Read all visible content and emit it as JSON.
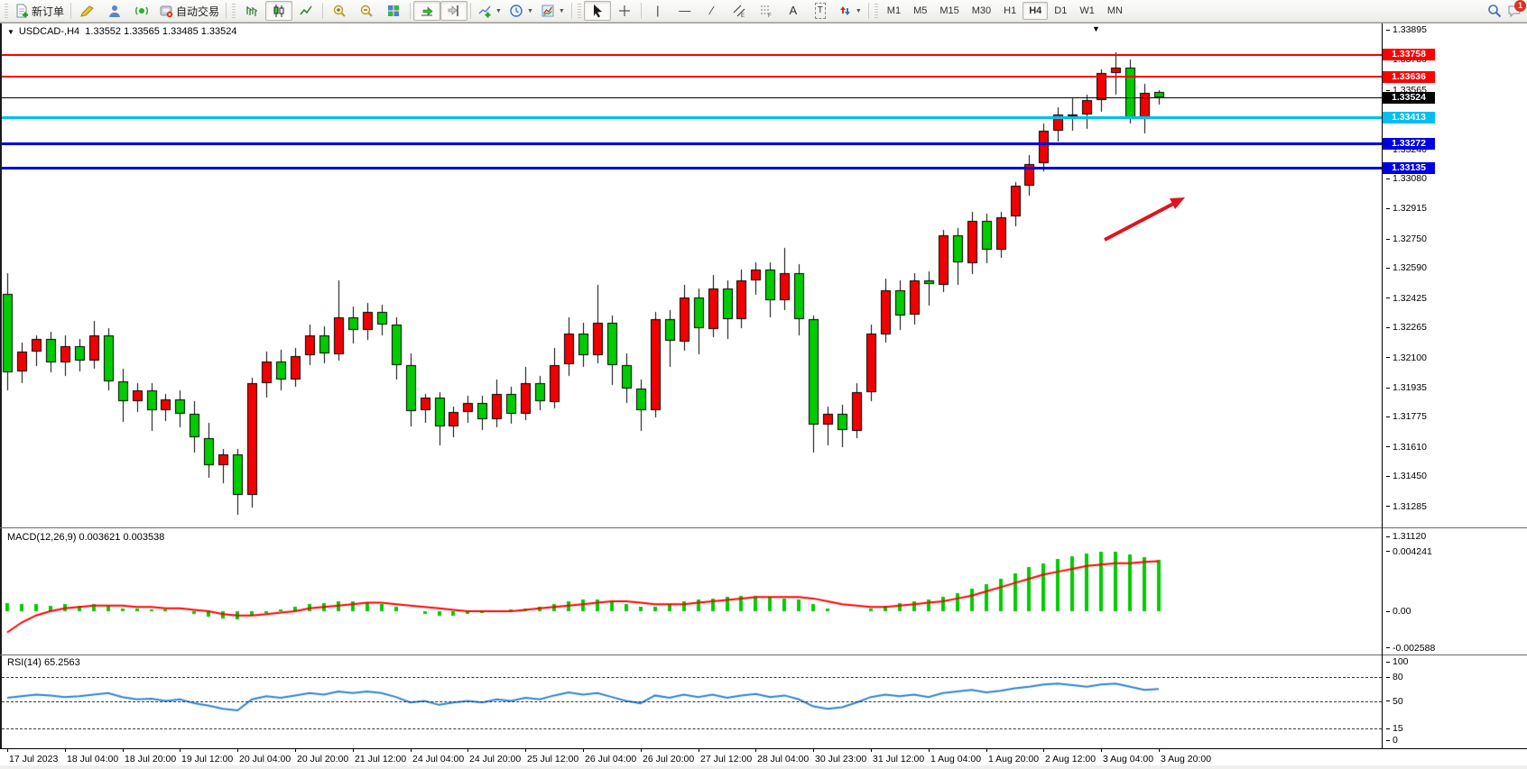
{
  "toolbar": {
    "new_order_label": "新订单",
    "autotrading_label": "自动交易",
    "timeframes": [
      "M1",
      "M5",
      "M15",
      "M30",
      "H1",
      "H4",
      "D1",
      "W1",
      "MN"
    ],
    "active_timeframe": "H4",
    "notification_badge": "1",
    "icons": [
      "new-order-icon",
      "metaeditor-icon",
      "strategy-tester-icon",
      "signals-icon",
      "autotrading-icon",
      "bar-chart-icon",
      "candlestick-chart-icon",
      "line-chart-icon",
      "zoom-in-icon",
      "zoom-out-icon",
      "tile-windows-icon",
      "auto-scroll-icon",
      "chart-shift-icon",
      "indicators-icon",
      "periods-icon",
      "templates-icon",
      "cursor-icon",
      "crosshair-icon",
      "vertical-line-icon",
      "horizontal-line-icon",
      "trendline-icon",
      "channel-icon",
      "fibonacci-icon",
      "text-icon",
      "text-label-icon",
      "arrows-icon",
      "search-icon",
      "chat-icon"
    ]
  },
  "window": {
    "collapse_marker": "▼",
    "title": "USDCAD-,H4",
    "quote": "1.33552 1.33565 1.33485 1.33524",
    "shift_marker": "▼"
  },
  "chart_data": {
    "type": "candlestick",
    "symbol": "USDCAD-",
    "period": "H4",
    "bars_per_label": 4,
    "x_labels": [
      "17 Jul 2023",
      "18 Jul 04:00",
      "18 Jul 20:00",
      "19 Jul 12:00",
      "20 Jul 04:00",
      "20 Jul 20:00",
      "21 Jul 12:00",
      "24 Jul 04:00",
      "24 Jul 20:00",
      "25 Jul 12:00",
      "26 Jul 04:00",
      "26 Jul 20:00",
      "27 Jul 12:00",
      "28 Jul 04:00",
      "30 Jul 23:00",
      "31 Jul 12:00",
      "1 Aug 04:00",
      "1 Aug 20:00",
      "2 Aug 12:00",
      "3 Aug 04:00",
      "3 Aug 20:00"
    ],
    "y_axis": {
      "max": 1.33895,
      "min": 1.3112,
      "ticks": [
        "1.33895",
        "1.33730",
        "1.33565",
        "1.33400",
        "1.33240",
        "1.33080",
        "1.32915",
        "1.32750",
        "1.32590",
        "1.32425",
        "1.32265",
        "1.32100",
        "1.31935",
        "1.31775",
        "1.31610",
        "1.31450",
        "1.31285",
        "1.31120"
      ]
    },
    "colors": {
      "bull_body": "#f20000",
      "bear_body": "#00cc00",
      "wick": "#000000",
      "macd_hist": "#00cc00",
      "macd_signal": "#ff0000",
      "rsi_line": "#2d83d5",
      "arrow": "#e01420"
    },
    "current_bar": {
      "open": "1.33552",
      "high": "1.33565",
      "low": "1.33485",
      "close": "1.33524"
    },
    "hlines": [
      {
        "label": "1.33758",
        "price": 1.33758,
        "color": "#ff0000",
        "thickness": 2
      },
      {
        "label": "1.33636",
        "price": 1.33636,
        "color": "#ff0000",
        "thickness": 2
      },
      {
        "label": "1.33524",
        "price": 1.33524,
        "color": "#000000",
        "thickness": 1
      },
      {
        "label": "1.33413",
        "price": 1.33413,
        "color": "#00bfef",
        "thickness": 3
      },
      {
        "label": "1.33272",
        "price": 1.33272,
        "color": "#0000e0",
        "thickness": 3
      },
      {
        "label": "1.33135",
        "price": 1.33135,
        "color": "#0000e0",
        "thickness": 3
      }
    ],
    "ohlc": [
      [
        1.3245,
        1.3256,
        1.3192,
        1.3202
      ],
      [
        1.3202,
        1.3218,
        1.3196,
        1.3213
      ],
      [
        1.3213,
        1.3222,
        1.3205,
        1.322
      ],
      [
        1.322,
        1.3224,
        1.3202,
        1.3207
      ],
      [
        1.3207,
        1.3222,
        1.32,
        1.3216
      ],
      [
        1.3216,
        1.322,
        1.3202,
        1.3208
      ],
      [
        1.3208,
        1.323,
        1.3204,
        1.3222
      ],
      [
        1.3222,
        1.3226,
        1.3192,
        1.3197
      ],
      [
        1.3197,
        1.3204,
        1.3175,
        1.3186
      ],
      [
        1.3186,
        1.3196,
        1.318,
        1.3192
      ],
      [
        1.3192,
        1.3196,
        1.317,
        1.3181
      ],
      [
        1.3181,
        1.319,
        1.3175,
        1.3187
      ],
      [
        1.3187,
        1.3192,
        1.3172,
        1.3179
      ],
      [
        1.3179,
        1.3186,
        1.3158,
        1.3166
      ],
      [
        1.3166,
        1.3174,
        1.3144,
        1.3151
      ],
      [
        1.3151,
        1.316,
        1.3141,
        1.3157
      ],
      [
        1.3157,
        1.316,
        1.3124,
        1.3135
      ],
      [
        1.3135,
        1.3199,
        1.3128,
        1.3196
      ],
      [
        1.3196,
        1.3213,
        1.3188,
        1.3208
      ],
      [
        1.3208,
        1.3214,
        1.3192,
        1.3198
      ],
      [
        1.3198,
        1.3215,
        1.3194,
        1.3211
      ],
      [
        1.3211,
        1.3228,
        1.3206,
        1.3222
      ],
      [
        1.3222,
        1.3227,
        1.3207,
        1.3212
      ],
      [
        1.3212,
        1.3252,
        1.3208,
        1.3232
      ],
      [
        1.3232,
        1.3238,
        1.3218,
        1.3225
      ],
      [
        1.3225,
        1.324,
        1.322,
        1.3235
      ],
      [
        1.3235,
        1.3239,
        1.3222,
        1.3228
      ],
      [
        1.3228,
        1.3232,
        1.3198,
        1.3206
      ],
      [
        1.3206,
        1.3212,
        1.3172,
        1.3181
      ],
      [
        1.3181,
        1.319,
        1.3174,
        1.3188
      ],
      [
        1.3188,
        1.3191,
        1.3162,
        1.3172
      ],
      [
        1.3172,
        1.3183,
        1.3166,
        1.318
      ],
      [
        1.318,
        1.3189,
        1.3174,
        1.3185
      ],
      [
        1.3185,
        1.3189,
        1.317,
        1.3176
      ],
      [
        1.3176,
        1.3198,
        1.3172,
        1.319
      ],
      [
        1.319,
        1.3194,
        1.3174,
        1.3179
      ],
      [
        1.3179,
        1.3205,
        1.3176,
        1.3196
      ],
      [
        1.3196,
        1.32,
        1.3181,
        1.3186
      ],
      [
        1.3186,
        1.3215,
        1.3182,
        1.3206
      ],
      [
        1.3206,
        1.3232,
        1.32,
        1.3223
      ],
      [
        1.3223,
        1.3229,
        1.3205,
        1.3211
      ],
      [
        1.3211,
        1.325,
        1.3207,
        1.3229
      ],
      [
        1.3229,
        1.3233,
        1.3195,
        1.3206
      ],
      [
        1.3206,
        1.3212,
        1.3185,
        1.3193
      ],
      [
        1.3193,
        1.3198,
        1.317,
        1.3181
      ],
      [
        1.3181,
        1.3235,
        1.3177,
        1.3231
      ],
      [
        1.3231,
        1.3236,
        1.3205,
        1.3219
      ],
      [
        1.3219,
        1.325,
        1.3214,
        1.3243
      ],
      [
        1.3243,
        1.3248,
        1.3212,
        1.3226
      ],
      [
        1.3226,
        1.3255,
        1.3221,
        1.3248
      ],
      [
        1.3248,
        1.3252,
        1.322,
        1.3231
      ],
      [
        1.3231,
        1.3258,
        1.3226,
        1.3252
      ],
      [
        1.3252,
        1.3262,
        1.3244,
        1.3258
      ],
      [
        1.3258,
        1.3262,
        1.3232,
        1.3241
      ],
      [
        1.3241,
        1.327,
        1.3236,
        1.3256
      ],
      [
        1.3256,
        1.3261,
        1.3222,
        1.3231
      ],
      [
        1.3231,
        1.3233,
        1.3158,
        1.3173
      ],
      [
        1.3173,
        1.3183,
        1.3162,
        1.3179
      ],
      [
        1.3179,
        1.3184,
        1.3161,
        1.317
      ],
      [
        1.317,
        1.3196,
        1.3166,
        1.3191
      ],
      [
        1.3191,
        1.3228,
        1.3186,
        1.3223
      ],
      [
        1.3223,
        1.3253,
        1.3218,
        1.3247
      ],
      [
        1.3247,
        1.3252,
        1.3225,
        1.3233
      ],
      [
        1.3233,
        1.3256,
        1.3228,
        1.3252
      ],
      [
        1.3252,
        1.3257,
        1.3238,
        1.325
      ],
      [
        1.325,
        1.328,
        1.3246,
        1.3277
      ],
      [
        1.3277,
        1.3281,
        1.325,
        1.3262
      ],
      [
        1.3262,
        1.329,
        1.3256,
        1.3285
      ],
      [
        1.3285,
        1.3289,
        1.3262,
        1.3269
      ],
      [
        1.3269,
        1.329,
        1.3265,
        1.3287
      ],
      [
        1.3287,
        1.3306,
        1.3282,
        1.3304
      ],
      [
        1.3304,
        1.3321,
        1.3299,
        1.3316
      ],
      [
        1.3316,
        1.3338,
        1.3312,
        1.3334
      ],
      [
        1.3334,
        1.3347,
        1.3328,
        1.3343
      ],
      [
        1.3343,
        1.3352,
        1.3334,
        1.3343
      ],
      [
        1.3343,
        1.3354,
        1.3335,
        1.3351
      ],
      [
        1.3351,
        1.3368,
        1.3345,
        1.3366
      ],
      [
        1.3366,
        1.3377,
        1.3354,
        1.3369
      ],
      [
        1.3369,
        1.3373,
        1.3338,
        1.3341
      ],
      [
        1.3341,
        1.336,
        1.3333,
        1.3355
      ],
      [
        1.33552,
        1.33565,
        1.33485,
        1.33524
      ]
    ],
    "macd": {
      "label": "MACD(12,26,9)",
      "value_main": "0.003621",
      "value_signal": "0.003538",
      "axis_max": "0.004241",
      "axis_zero": "0.00",
      "axis_min": "-0.002588",
      "axis_max_v": 0.004241,
      "axis_min_v": -0.002588,
      "histogram": [
        0.0006,
        0.0005,
        0.0005,
        0.0004,
        0.0005,
        0.0004,
        0.0005,
        0.0004,
        0.0002,
        0.0002,
        0.0001,
        0.0001,
        0,
        -0.0002,
        -0.0004,
        -0.0005,
        -0.0006,
        -0.0003,
        -0.0001,
        0.0001,
        0.0003,
        0.0005,
        0.0006,
        0.0007,
        0.0007,
        0.0006,
        0.0005,
        0.0003,
        0,
        -0.0002,
        -0.0003,
        -0.0003,
        -0.0002,
        -0.0001,
        0,
        0.0001,
        0.0002,
        0.0003,
        0.0005,
        0.0007,
        0.0008,
        0.0008,
        0.0007,
        0.0005,
        0.0003,
        0.0003,
        0.0005,
        0.0007,
        0.0008,
        0.0009,
        0.001,
        0.0011,
        0.0011,
        0.001,
        0.0009,
        0.0008,
        0.0005,
        0.0002,
        0,
        0,
        0.0002,
        0.0004,
        0.0006,
        0.0007,
        0.0008,
        0.001,
        0.0013,
        0.0016,
        0.0019,
        0.0023,
        0.0027,
        0.0031,
        0.0034,
        0.0037,
        0.0039,
        0.0041,
        0.004241,
        0.0042,
        0.004,
        0.0038,
        0.003621
      ],
      "signal": [
        -0.0015,
        -0.0008,
        -0.0003,
        0,
        0.0002,
        0.0003,
        0.0004,
        0.0004,
        0.0004,
        0.0003,
        0.0003,
        0.0002,
        0.0002,
        0.0001,
        0,
        -0.0002,
        -0.0003,
        -0.0003,
        -0.0002,
        -0.0001,
        0,
        0.0002,
        0.0003,
        0.0004,
        0.0005,
        0.0006,
        0.0006,
        0.0005,
        0.0004,
        0.0003,
        0.0002,
        0.0001,
        0,
        0,
        0,
        0,
        0.0001,
        0.0002,
        0.0003,
        0.0004,
        0.0005,
        0.0006,
        0.0007,
        0.0007,
        0.0006,
        0.0005,
        0.0005,
        0.0005,
        0.0006,
        0.0007,
        0.0008,
        0.0009,
        0.001,
        0.001,
        0.001,
        0.001,
        0.0009,
        0.0007,
        0.0005,
        0.0004,
        0.0003,
        0.0003,
        0.0004,
        0.0005,
        0.0006,
        0.0007,
        0.0009,
        0.0011,
        0.0014,
        0.0017,
        0.002,
        0.0023,
        0.0026,
        0.0028,
        0.003,
        0.0032,
        0.0033,
        0.0034,
        0.0034,
        0.0035,
        0.003538
      ]
    },
    "rsi": {
      "label": "RSI(14)",
      "value": "65.2563",
      "axis_labels": [
        "100",
        "80",
        "50",
        "15",
        "0"
      ],
      "levels": [
        80,
        50,
        15
      ],
      "values": [
        54,
        56,
        58,
        57,
        55,
        56,
        58,
        60,
        55,
        52,
        53,
        50,
        52,
        47,
        44,
        40,
        38,
        52,
        56,
        54,
        57,
        60,
        58,
        62,
        60,
        62,
        60,
        55,
        48,
        50,
        45,
        48,
        50,
        48,
        52,
        50,
        54,
        52,
        57,
        61,
        58,
        60,
        55,
        50,
        47,
        57,
        54,
        58,
        55,
        58,
        54,
        57,
        59,
        55,
        57,
        52,
        43,
        40,
        42,
        48,
        55,
        58,
        56,
        58,
        55,
        60,
        62,
        64,
        61,
        63,
        66,
        68,
        71,
        72,
        70,
        68,
        71,
        72,
        68,
        64,
        65.26
      ]
    }
  }
}
